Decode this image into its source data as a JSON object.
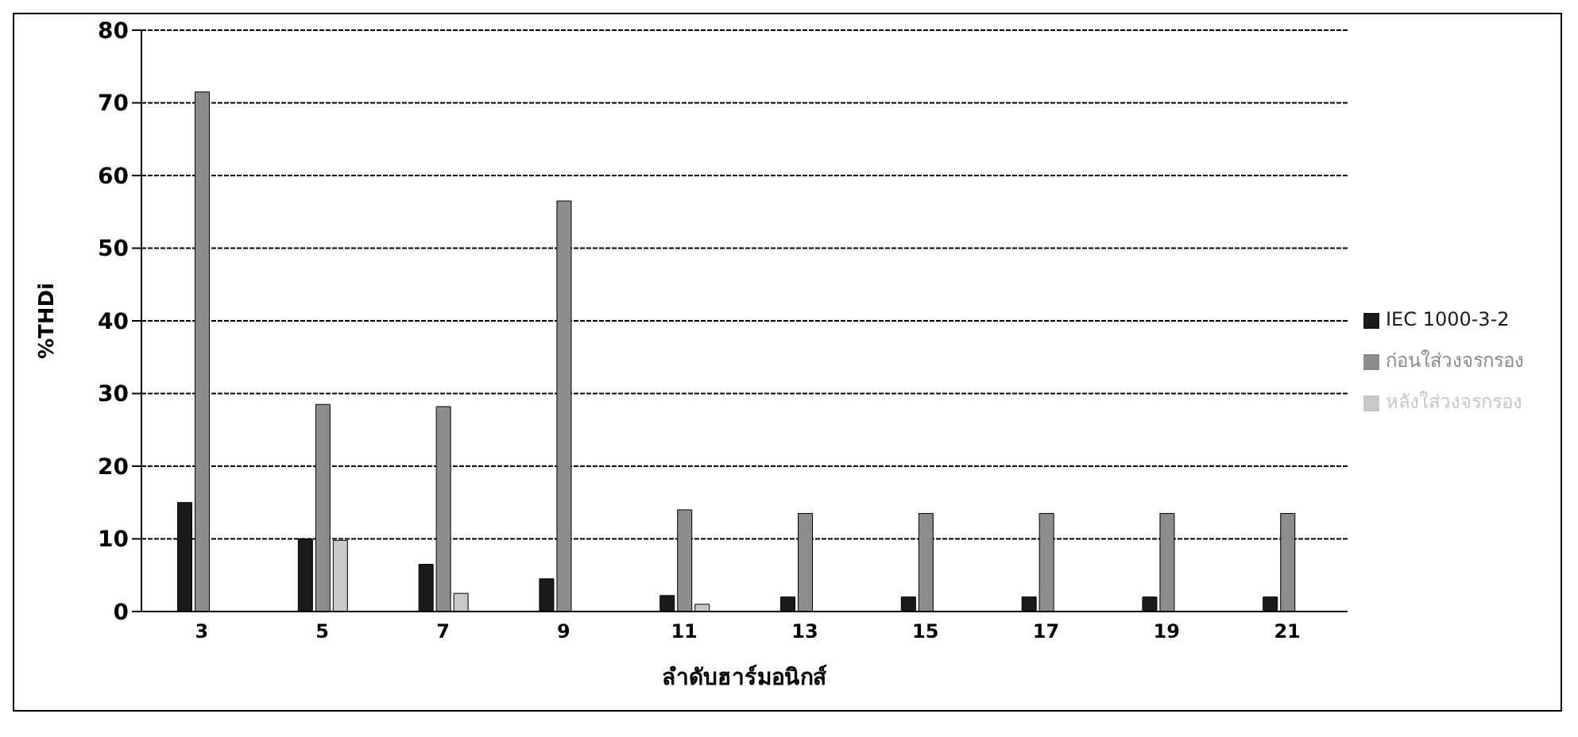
{
  "chart_data": {
    "type": "bar",
    "xlabel": "ลำดับฮาร์มอนิกส์",
    "ylabel": "%THDi",
    "categories": [
      "3",
      "5",
      "7",
      "9",
      "11",
      "13",
      "15",
      "17",
      "19",
      "21"
    ],
    "series": [
      {
        "name": "IEC 1000-3-2",
        "color": "#1a1a1a",
        "values": [
          15,
          10,
          6.5,
          4.5,
          2.2,
          2,
          2,
          2,
          2,
          2
        ]
      },
      {
        "name": "ก่อนใส่วงจรกรอง",
        "color": "#8c8c8c",
        "values": [
          71.5,
          28.5,
          28.2,
          56.5,
          14,
          13.5,
          13.5,
          13.5,
          13.5,
          13.5
        ]
      },
      {
        "name": "หลังใส่วงจรกรอง",
        "color": "#c8c8c8",
        "values": [
          0,
          9.8,
          2.5,
          0,
          1,
          0,
          0,
          0,
          0,
          0
        ]
      }
    ],
    "ylim": [
      0,
      80
    ],
    "yticks": [
      0,
      10,
      20,
      30,
      40,
      50,
      60,
      70,
      80
    ],
    "grid": "y",
    "legend": "right"
  }
}
